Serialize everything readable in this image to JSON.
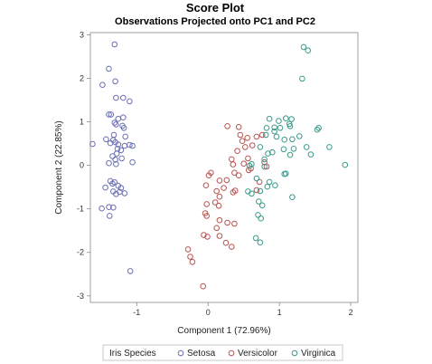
{
  "chart_data": {
    "type": "scatter",
    "title": "Score Plot",
    "subtitle": "Observations Projected onto PC1 and PC2",
    "xlabel": "Component 1 (72.96%)",
    "ylabel": "Component 2 (22.85%)",
    "xlim": [
      -1.65,
      2.1
    ],
    "ylim": [
      -3.15,
      3.05
    ],
    "xticks": [
      -1,
      0,
      1,
      2
    ],
    "yticks": [
      -3,
      -2,
      -1,
      0,
      1,
      2,
      3
    ],
    "grid": false,
    "legend": {
      "title": "Iris Species",
      "position": "bottom"
    },
    "series": [
      {
        "name": "Setosa",
        "color": "#6a6fb5",
        "points": [
          [
            -1.31,
            2.78
          ],
          [
            -1.39,
            2.22
          ],
          [
            -1.48,
            1.85
          ],
          [
            -1.3,
            1.93
          ],
          [
            -1.29,
            1.55
          ],
          [
            -1.19,
            1.55
          ],
          [
            -1.1,
            1.47
          ],
          [
            -1.39,
            1.17
          ],
          [
            -1.36,
            1.17
          ],
          [
            -1.26,
            1.07
          ],
          [
            -1.19,
            1.1
          ],
          [
            -1.29,
            0.94
          ],
          [
            -1.31,
            0.98
          ],
          [
            -1.2,
            0.91
          ],
          [
            -1.32,
            0.7
          ],
          [
            -1.16,
            0.66
          ],
          [
            -1.43,
            0.6
          ],
          [
            -1.33,
            0.58
          ],
          [
            -1.62,
            0.49
          ],
          [
            -1.37,
            0.51
          ],
          [
            -1.3,
            0.53
          ],
          [
            -1.26,
            0.48
          ],
          [
            -1.1,
            0.47
          ],
          [
            -1.17,
            0.45
          ],
          [
            -1.06,
            0.45
          ],
          [
            -1.22,
            0.35
          ],
          [
            -1.28,
            0.27
          ],
          [
            -1.34,
            0.21
          ],
          [
            -1.3,
            0.13
          ],
          [
            -1.21,
            0.16
          ],
          [
            -1.06,
            0.07
          ],
          [
            -1.39,
            0.05
          ],
          [
            -1.29,
            0.03
          ],
          [
            -1.31,
            -0.39
          ],
          [
            -1.37,
            -0.36
          ],
          [
            -1.44,
            -0.51
          ],
          [
            -1.26,
            -0.47
          ],
          [
            -1.22,
            -0.52
          ],
          [
            -1.33,
            -0.6
          ],
          [
            -1.29,
            -0.66
          ],
          [
            -1.17,
            -0.64
          ],
          [
            -1.49,
            -0.99
          ],
          [
            -1.39,
            -0.96
          ],
          [
            -1.33,
            -0.97
          ],
          [
            -1.38,
            -1.16
          ],
          [
            -1.09,
            -2.43
          ],
          [
            -1.24,
            -0.61
          ],
          [
            -1.34,
            -0.42
          ],
          [
            -1.27,
            0.38
          ],
          [
            -1.18,
            0.86
          ]
        ]
      },
      {
        "name": "Versicolor",
        "color": "#b85450",
        "points": [
          [
            0.27,
            0.9
          ],
          [
            0.43,
            0.88
          ],
          [
            0.45,
            0.7
          ],
          [
            0.48,
            0.56
          ],
          [
            0.55,
            0.63
          ],
          [
            0.68,
            0.66
          ],
          [
            0.62,
            0.46
          ],
          [
            0.52,
            0.42
          ],
          [
            0.41,
            0.33
          ],
          [
            0.33,
            0.14
          ],
          [
            0.56,
            0.16
          ],
          [
            0.76,
            0.7
          ],
          [
            0.35,
            0.02
          ],
          [
            0.5,
            0.04
          ],
          [
            0.57,
            -0.11
          ],
          [
            0.37,
            -0.17
          ],
          [
            0.43,
            -0.23
          ],
          [
            0.26,
            -0.34
          ],
          [
            0.04,
            -0.17
          ],
          [
            0.01,
            -0.23
          ],
          [
            0.16,
            -0.35
          ],
          [
            -0.03,
            -0.46
          ],
          [
            0.12,
            -0.59
          ],
          [
            0.22,
            -0.52
          ],
          [
            0.38,
            -0.58
          ],
          [
            0.35,
            -0.62
          ],
          [
            -0.02,
            -0.89
          ],
          [
            0.1,
            -0.85
          ],
          [
            0.15,
            -0.93
          ],
          [
            0.16,
            -0.72
          ],
          [
            -0.04,
            -1.1
          ],
          [
            -0.02,
            -1.16
          ],
          [
            0.16,
            -1.26
          ],
          [
            0.12,
            -1.44
          ],
          [
            0.27,
            -1.32
          ],
          [
            0.37,
            -1.34
          ],
          [
            0.16,
            -1.62
          ],
          [
            -0.01,
            -1.64
          ],
          [
            -0.06,
            -1.6
          ],
          [
            0.25,
            -1.78
          ],
          [
            0.33,
            -1.87
          ],
          [
            -0.28,
            -1.93
          ],
          [
            -0.25,
            -2.1
          ],
          [
            -0.22,
            -2.22
          ],
          [
            -0.07,
            -2.78
          ],
          [
            0.68,
            -0.57
          ],
          [
            0.72,
            -0.38
          ],
          [
            0.6,
            -0.07
          ],
          [
            0.79,
            0.07
          ],
          [
            0.82,
            -0.03
          ]
        ]
      },
      {
        "name": "Virginica",
        "color": "#3a9a8a",
        "points": [
          [
            1.34,
            2.72
          ],
          [
            1.4,
            2.64
          ],
          [
            1.32,
            1.99
          ],
          [
            0.86,
            1.07
          ],
          [
            0.99,
            1.02
          ],
          [
            1.09,
            1.08
          ],
          [
            1.14,
            0.95
          ],
          [
            1.15,
            0.9
          ],
          [
            0.93,
            0.87
          ],
          [
            1.17,
            1.06
          ],
          [
            0.81,
            0.7
          ],
          [
            0.96,
            0.66
          ],
          [
            1.07,
            0.59
          ],
          [
            1.18,
            0.6
          ],
          [
            1.28,
            0.67
          ],
          [
            1.53,
            0.82
          ],
          [
            1.55,
            0.86
          ],
          [
            1.38,
            0.42
          ],
          [
            1.06,
            0.37
          ],
          [
            0.9,
            0.3
          ],
          [
            0.84,
            0.27
          ],
          [
            1.15,
            0.24
          ],
          [
            1.44,
            0.25
          ],
          [
            1.7,
            0.42
          ],
          [
            1.92,
            0.01
          ],
          [
            0.79,
            0.14
          ],
          [
            0.58,
            -0.01
          ],
          [
            0.79,
            -0.03
          ],
          [
            0.61,
            0.03
          ],
          [
            0.73,
            0.42
          ],
          [
            1.07,
            -0.2
          ],
          [
            1.09,
            -0.19
          ],
          [
            0.86,
            -0.38
          ],
          [
            0.94,
            -0.46
          ],
          [
            0.83,
            -0.49
          ],
          [
            0.68,
            -0.3
          ],
          [
            0.73,
            -0.59
          ],
          [
            0.56,
            -0.6
          ],
          [
            0.61,
            -0.65
          ],
          [
            0.71,
            -0.83
          ],
          [
            0.76,
            -0.92
          ],
          [
            0.7,
            -1.14
          ],
          [
            0.74,
            -1.22
          ],
          [
            0.67,
            -1.67
          ],
          [
            0.73,
            -1.77
          ],
          [
            0.82,
            0.86
          ],
          [
            1.01,
            0.86
          ],
          [
            0.93,
            0.78
          ],
          [
            1.2,
            0.38
          ],
          [
            1.18,
            -0.73
          ]
        ]
      }
    ]
  }
}
